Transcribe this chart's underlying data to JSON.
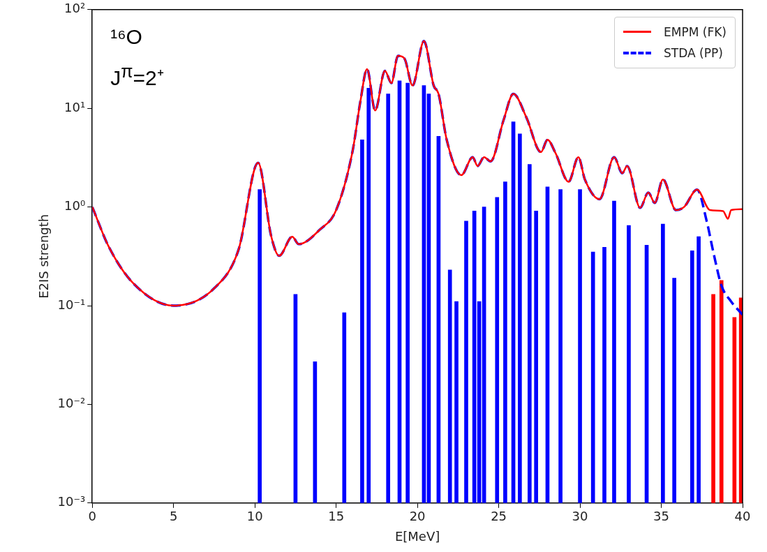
{
  "chart_data": {
    "type": "line",
    "xlabel": "E[MeV]",
    "ylabel": "E2IS strength",
    "annotations": [
      "¹⁶O",
      "J$^{π}$=2⁺"
    ],
    "xlim": [
      0,
      40
    ],
    "xticks": [
      0,
      5,
      10,
      15,
      20,
      25,
      30,
      35,
      40
    ],
    "log": "y",
    "ylim": [
      0.001,
      100
    ],
    "yticks": [
      {
        "value": 0.001,
        "label": "10⁻³"
      },
      {
        "value": 0.01,
        "label": "10⁻²"
      },
      {
        "value": 0.1,
        "label": "10⁻¹"
      },
      {
        "value": 1,
        "label": "10⁰"
      },
      {
        "value": 10,
        "label": "10¹"
      },
      {
        "value": 100,
        "label": "10²"
      }
    ],
    "grid": false,
    "legend": "top right",
    "marker": "none",
    "series": [
      {
        "type": "bar",
        "colors": [
          "#0000ff",
          "#0000ff",
          "#0000ff",
          "#0000ff",
          "#0000ff",
          "#0000ff",
          "#0000ff",
          "#0000ff",
          "#0000ff",
          "#0000ff",
          "#0000ff",
          "#0000ff",
          "#0000ff",
          "#0000ff",
          "#0000ff",
          "#0000ff",
          "#0000ff",
          "#0000ff",
          "#0000ff",
          "#0000ff",
          "#0000ff",
          "#0000ff",
          "#0000ff",
          "#0000ff",
          "#0000ff",
          "#0000ff",
          "#0000ff",
          "#0000ff",
          "#0000ff",
          "#0000ff",
          "#0000ff",
          "#0000ff",
          "#0000ff",
          "#0000ff",
          "#0000ff",
          "#0000ff",
          "#ff0000",
          "#ff0000",
          "#ff0000",
          "#ff0000"
        ],
        "x": [
          10.3,
          12.5,
          13.7,
          15.5,
          16.6,
          17.0,
          18.2,
          18.9,
          19.4,
          20.4,
          20.7,
          21.3,
          22.0,
          22.4,
          23.0,
          23.5,
          23.8,
          24.1,
          24.9,
          25.4,
          25.9,
          26.3,
          26.9,
          27.3,
          28.0,
          28.8,
          30.0,
          30.8,
          31.5,
          32.1,
          33.0,
          34.1,
          35.1,
          35.8,
          36.9,
          37.3,
          38.2,
          38.7,
          39.5,
          39.9
        ],
        "values": [
          1.5,
          0.13,
          0.027,
          0.085,
          4.8,
          16,
          14,
          19,
          18,
          17,
          14,
          5.2,
          0.23,
          0.11,
          0.72,
          0.91,
          0.11,
          1.0,
          1.25,
          1.8,
          7.3,
          5.5,
          2.7,
          0.91,
          1.6,
          1.5,
          1.5,
          0.35,
          0.39,
          1.15,
          0.65,
          0.41,
          0.67,
          0.19,
          0.36,
          0.5,
          0.13,
          0.18,
          0.076,
          0.12
        ]
      },
      {
        "name": "EMPM (FK)",
        "color": "#ff0000",
        "line_style": "solid",
        "x": [
          0,
          1,
          2.5,
          5,
          7.5,
          9,
          10.2,
          11,
          11.5,
          12.3,
          12.7,
          14,
          15,
          16,
          16.5,
          16.9,
          17.4,
          18,
          18.4,
          18.8,
          19.2,
          19.7,
          20.4,
          21.0,
          21.3,
          21.8,
          22.7,
          23.4,
          23.7,
          24.1,
          24.5,
          25.3,
          25.9,
          26.7,
          27.6,
          28.0,
          28.5,
          29.3,
          29.9,
          30.3,
          31.2,
          32.1,
          32.6,
          32.9,
          33.7,
          34.2,
          34.6,
          35.1,
          35.9,
          36.4,
          37.2,
          38.0,
          38.8,
          39.1,
          39.3,
          40
        ],
        "values": [
          1.0,
          0.4,
          0.17,
          0.1,
          0.15,
          0.37,
          2.8,
          0.51,
          0.32,
          0.5,
          0.42,
          0.59,
          0.93,
          3.6,
          12,
          25,
          9.5,
          24,
          18,
          34,
          32,
          17,
          48,
          17,
          14,
          4.8,
          2.1,
          3.2,
          2.6,
          3.2,
          2.9,
          7.6,
          14,
          8.1,
          3.6,
          4.8,
          3.5,
          1.8,
          3.2,
          1.9,
          1.2,
          3.2,
          2.2,
          2.6,
          0.98,
          1.4,
          1.1,
          1.9,
          0.93,
          1.0,
          1.5,
          0.93,
          0.91,
          0.76,
          0.93,
          0.95
        ]
      },
      {
        "name": "STDA (PP)",
        "color": "#0000ff",
        "line_style": "dashed",
        "x": [
          0,
          1,
          2.5,
          5,
          7.5,
          9,
          10.2,
          11,
          11.5,
          12.3,
          12.7,
          14,
          15,
          16,
          16.5,
          16.9,
          17.4,
          18,
          18.4,
          18.8,
          19.2,
          19.7,
          20.4,
          21.0,
          21.3,
          21.8,
          22.7,
          23.4,
          23.7,
          24.1,
          24.5,
          25.3,
          25.9,
          26.7,
          27.6,
          28.0,
          28.5,
          29.3,
          29.9,
          30.3,
          31.2,
          32.1,
          32.6,
          32.9,
          33.7,
          34.2,
          34.6,
          35.1,
          35.9,
          36.4,
          37.2,
          37.8,
          38.2,
          38.7,
          39.3,
          40
        ],
        "values": [
          1.0,
          0.4,
          0.17,
          0.1,
          0.15,
          0.37,
          2.8,
          0.51,
          0.32,
          0.5,
          0.42,
          0.59,
          0.93,
          3.6,
          12,
          25,
          9.5,
          24,
          18,
          34,
          32,
          17,
          48,
          17,
          14,
          4.8,
          2.1,
          3.2,
          2.6,
          3.2,
          2.9,
          7.6,
          14,
          8.1,
          3.6,
          4.8,
          3.5,
          1.8,
          3.2,
          1.9,
          1.2,
          3.2,
          2.2,
          2.6,
          0.98,
          1.4,
          1.1,
          1.9,
          0.93,
          1.0,
          1.5,
          0.71,
          0.35,
          0.16,
          0.11,
          0.081
        ]
      }
    ]
  }
}
